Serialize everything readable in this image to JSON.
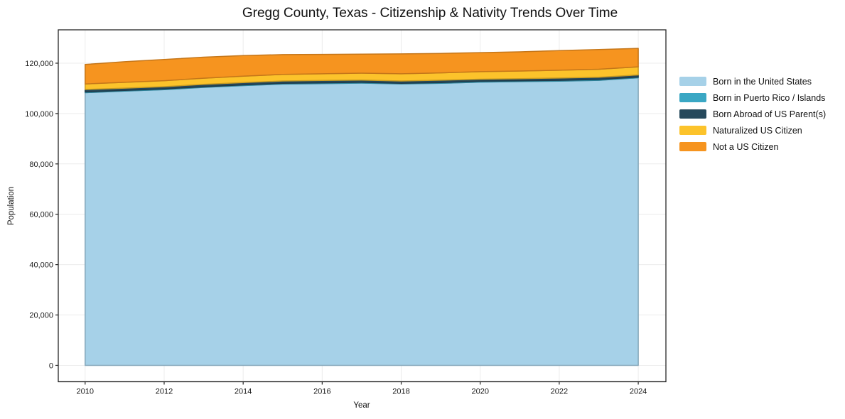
{
  "figure": {
    "title": "Gregg County, Texas - Citizenship & Nativity Trends Over Time",
    "xlabel": "Year",
    "ylabel": "Population"
  },
  "chart_data": {
    "type": "area",
    "stacked": true,
    "title": "Gregg County, Texas - Citizenship & Nativity Trends Over Time",
    "xlabel": "Year",
    "ylabel": "Population",
    "grid": true,
    "legend_position": "right",
    "x": [
      2010,
      2011,
      2012,
      2013,
      2014,
      2015,
      2016,
      2017,
      2018,
      2019,
      2020,
      2021,
      2022,
      2023,
      2024
    ],
    "series": [
      {
        "name": "Born in the United States",
        "color": "#a6d1e8",
        "values": [
          108300,
          108900,
          109500,
          110400,
          111100,
          111700,
          111900,
          112100,
          111800,
          112000,
          112500,
          112700,
          112900,
          113200,
          114200
        ]
      },
      {
        "name": "Born in Puerto Rico / Islands",
        "color": "#3aa7c4",
        "values": [
          300,
          300,
          300,
          250,
          300,
          350,
          300,
          300,
          250,
          300,
          350,
          300,
          300,
          350,
          300
        ]
      },
      {
        "name": "Born Abroad of US Parent(s)",
        "color": "#26495c",
        "values": [
          950,
          900,
          900,
          950,
          900,
          900,
          950,
          900,
          900,
          950,
          800,
          850,
          900,
          900,
          850
        ]
      },
      {
        "name": "Naturalized US Citizen",
        "color": "#fcc32b",
        "values": [
          2200,
          2300,
          2350,
          2450,
          2550,
          2600,
          2650,
          2750,
          2850,
          2900,
          3000,
          3050,
          3100,
          3150,
          3200
        ]
      },
      {
        "name": "Not a US Citizen",
        "color": "#f6941f",
        "values": [
          7750,
          8200,
          8450,
          8350,
          8150,
          7850,
          7700,
          7550,
          7900,
          7750,
          7550,
          7600,
          7800,
          7800,
          7350
        ]
      }
    ],
    "totals": [
      119500,
      120600,
      121500,
      122400,
      123000,
      123400,
      123500,
      123600,
      123700,
      123900,
      124200,
      124500,
      125000,
      125400,
      125900
    ],
    "xticks": [
      2010,
      2012,
      2014,
      2016,
      2018,
      2020,
      2022,
      2024
    ],
    "xtick_labels": [
      "2010",
      "2012",
      "2014",
      "2016",
      "2018",
      "2020",
      "2022",
      "2024"
    ],
    "yticks": [
      0,
      20000,
      40000,
      60000,
      80000,
      100000,
      120000
    ],
    "ytick_labels": [
      "0",
      "20,000",
      "40,000",
      "60,000",
      "80,000",
      "100,000",
      "120,000"
    ],
    "xlim": [
      2009.32,
      2024.7
    ],
    "ylim": [
      -6500,
      133250
    ]
  }
}
